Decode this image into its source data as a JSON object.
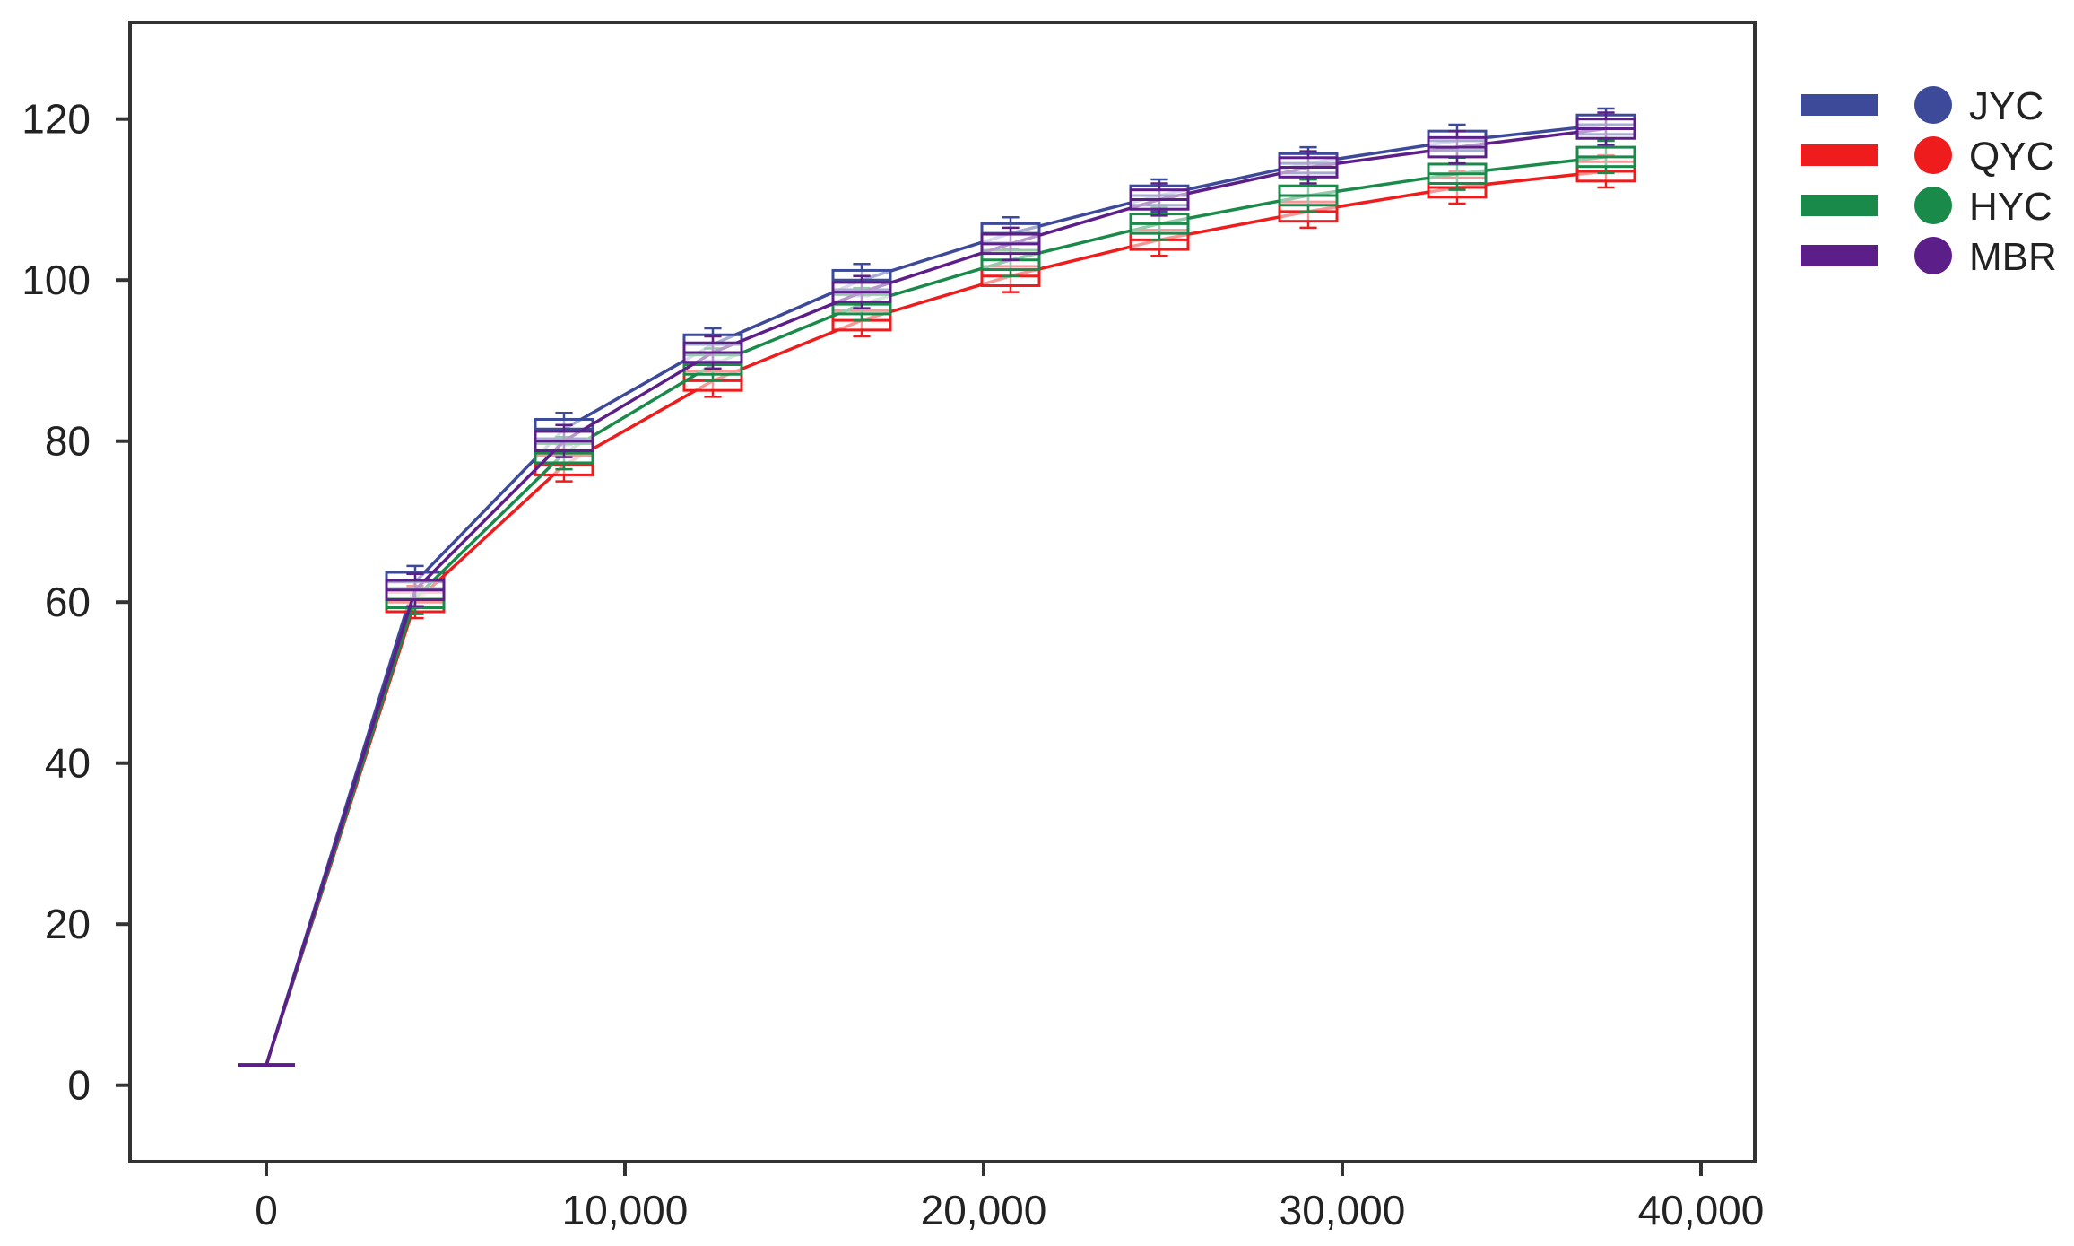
{
  "chart_data": {
    "type": "line",
    "title": "",
    "xlabel": "",
    "ylabel": "",
    "xlim": [
      -3800,
      41500
    ],
    "ylim": [
      -9.5,
      132
    ],
    "x_ticks": [
      {
        "value": 0,
        "label": "0"
      },
      {
        "value": 10000,
        "label": "10,000"
      },
      {
        "value": 20000,
        "label": "20,000"
      },
      {
        "value": 30000,
        "label": "30,000"
      },
      {
        "value": 40000,
        "label": "40,000"
      }
    ],
    "y_ticks": [
      {
        "value": 0,
        "label": "0"
      },
      {
        "value": 20,
        "label": "20"
      },
      {
        "value": 40,
        "label": "40"
      },
      {
        "value": 60,
        "label": "60"
      },
      {
        "value": 80,
        "label": "80"
      },
      {
        "value": 100,
        "label": "100"
      },
      {
        "value": 120,
        "label": "120"
      }
    ],
    "grid": false,
    "legend_position": "right",
    "x": [
      0,
      4150,
      8300,
      12450,
      16600,
      20750,
      24900,
      29050,
      33200,
      37350
    ],
    "series": [
      {
        "name": "JYC",
        "color": "#3d4a9a",
        "values": [
          2.5,
          62.5,
          81.5,
          92,
          100,
          105.8,
          110.5,
          114.5,
          117.3,
          119.3
        ]
      },
      {
        "name": "QYC",
        "color": "#ee1c1c",
        "values": [
          2.5,
          60,
          77,
          87.5,
          95,
          100.5,
          105,
          108.5,
          111.5,
          113.5
        ]
      },
      {
        "name": "HYC",
        "color": "#1a8a4a",
        "values": [
          2.5,
          60.5,
          78.5,
          89.5,
          97,
          102.5,
          107,
          110.5,
          113.2,
          115.3
        ]
      },
      {
        "name": "MBR",
        "color": "#5c1f8a",
        "values": [
          2.5,
          61.5,
          80,
          91,
          98.5,
          104.5,
          110,
          114,
          116.5,
          118.8
        ]
      }
    ],
    "box_halfwidth": 800,
    "box_halfheight": 1.2,
    "whisker_extent": 2.0
  }
}
